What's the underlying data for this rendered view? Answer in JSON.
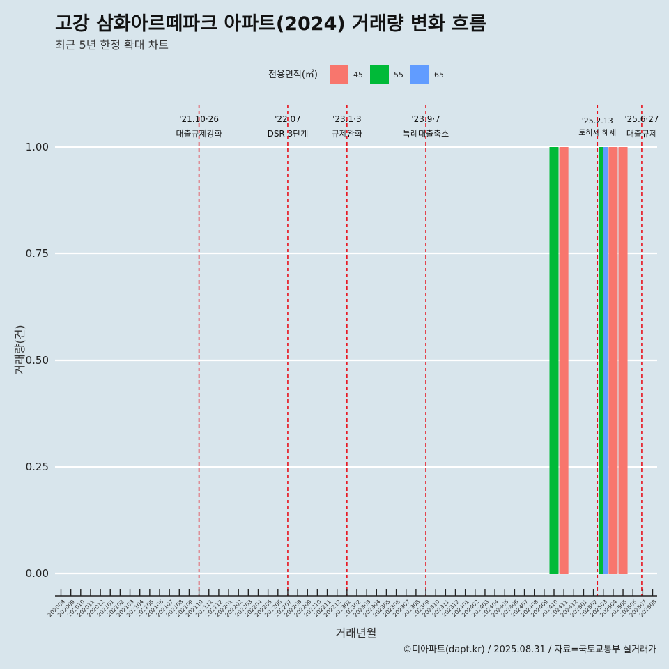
{
  "chart_data": {
    "type": "bar",
    "title": "고강 삼화아르떼파크 아파트(2024) 거래량 변화 흐름",
    "subtitle": "최근 5년 한정 확대 차트",
    "xlabel": "거래년월",
    "ylabel": "거래량(건)",
    "ylim": [
      0,
      1
    ],
    "yticks": [
      "0.00",
      "0.25",
      "0.50",
      "0.75",
      "1.00"
    ],
    "grid": true,
    "legend": {
      "title": "전용면적(㎡)",
      "position": "top",
      "entries": [
        {
          "name": "45",
          "color": "#f8766d"
        },
        {
          "name": "55",
          "color": "#00ba38"
        },
        {
          "name": "65",
          "color": "#619cff"
        }
      ]
    },
    "categories": [
      "202008",
      "202009",
      "202010",
      "202011",
      "202012",
      "202101",
      "202102",
      "202103",
      "202104",
      "202105",
      "202106",
      "202107",
      "202108",
      "202109",
      "202110",
      "202111",
      "202112",
      "202201",
      "202202",
      "202203",
      "202204",
      "202205",
      "202206",
      "202207",
      "202208",
      "202209",
      "202210",
      "202211",
      "202212",
      "202301",
      "202302",
      "202303",
      "202304",
      "202305",
      "202306",
      "202307",
      "202308",
      "202309",
      "202310",
      "202311",
      "202312",
      "202401",
      "202402",
      "202403",
      "202404",
      "202405",
      "202406",
      "202407",
      "202408",
      "202409",
      "202410",
      "202411",
      "202412",
      "202501",
      "202502",
      "202503",
      "202504",
      "202505",
      "202506",
      "202507",
      "202508"
    ],
    "bars": [
      {
        "month": "202410",
        "area": "55",
        "value": 1
      },
      {
        "month": "202411",
        "area": "45",
        "value": 1
      },
      {
        "month": "202503",
        "area": "55",
        "value": 1
      },
      {
        "month": "202503",
        "area": "65",
        "value": 1
      },
      {
        "month": "202504",
        "area": "45",
        "value": 1
      },
      {
        "month": "202505",
        "area": "45",
        "value": 1
      }
    ],
    "annotations": [
      {
        "at": 14.0,
        "line1": "'21.10·26",
        "line2": "대출규제강화",
        "small": false
      },
      {
        "at": 23.0,
        "line1": "'22.07",
        "line2": "DSR 3단계",
        "small": false
      },
      {
        "at": 29.0,
        "line1": "'23.1·3",
        "line2": "규제완화",
        "small": false
      },
      {
        "at": 37.0,
        "line1": "'23.9·7",
        "line2": "특례대출축소",
        "small": false
      },
      {
        "at": 54.4,
        "line1": "'25.2.13",
        "line2": "토허제 해제",
        "small": true
      },
      {
        "at": 58.9,
        "line1": "'25.6·27",
        "line2": "대출규제",
        "small": false
      }
    ]
  },
  "caption": "©디아파트(dapt.kr) / 2025.08.31 / 자료=국토교통부 실거래가"
}
